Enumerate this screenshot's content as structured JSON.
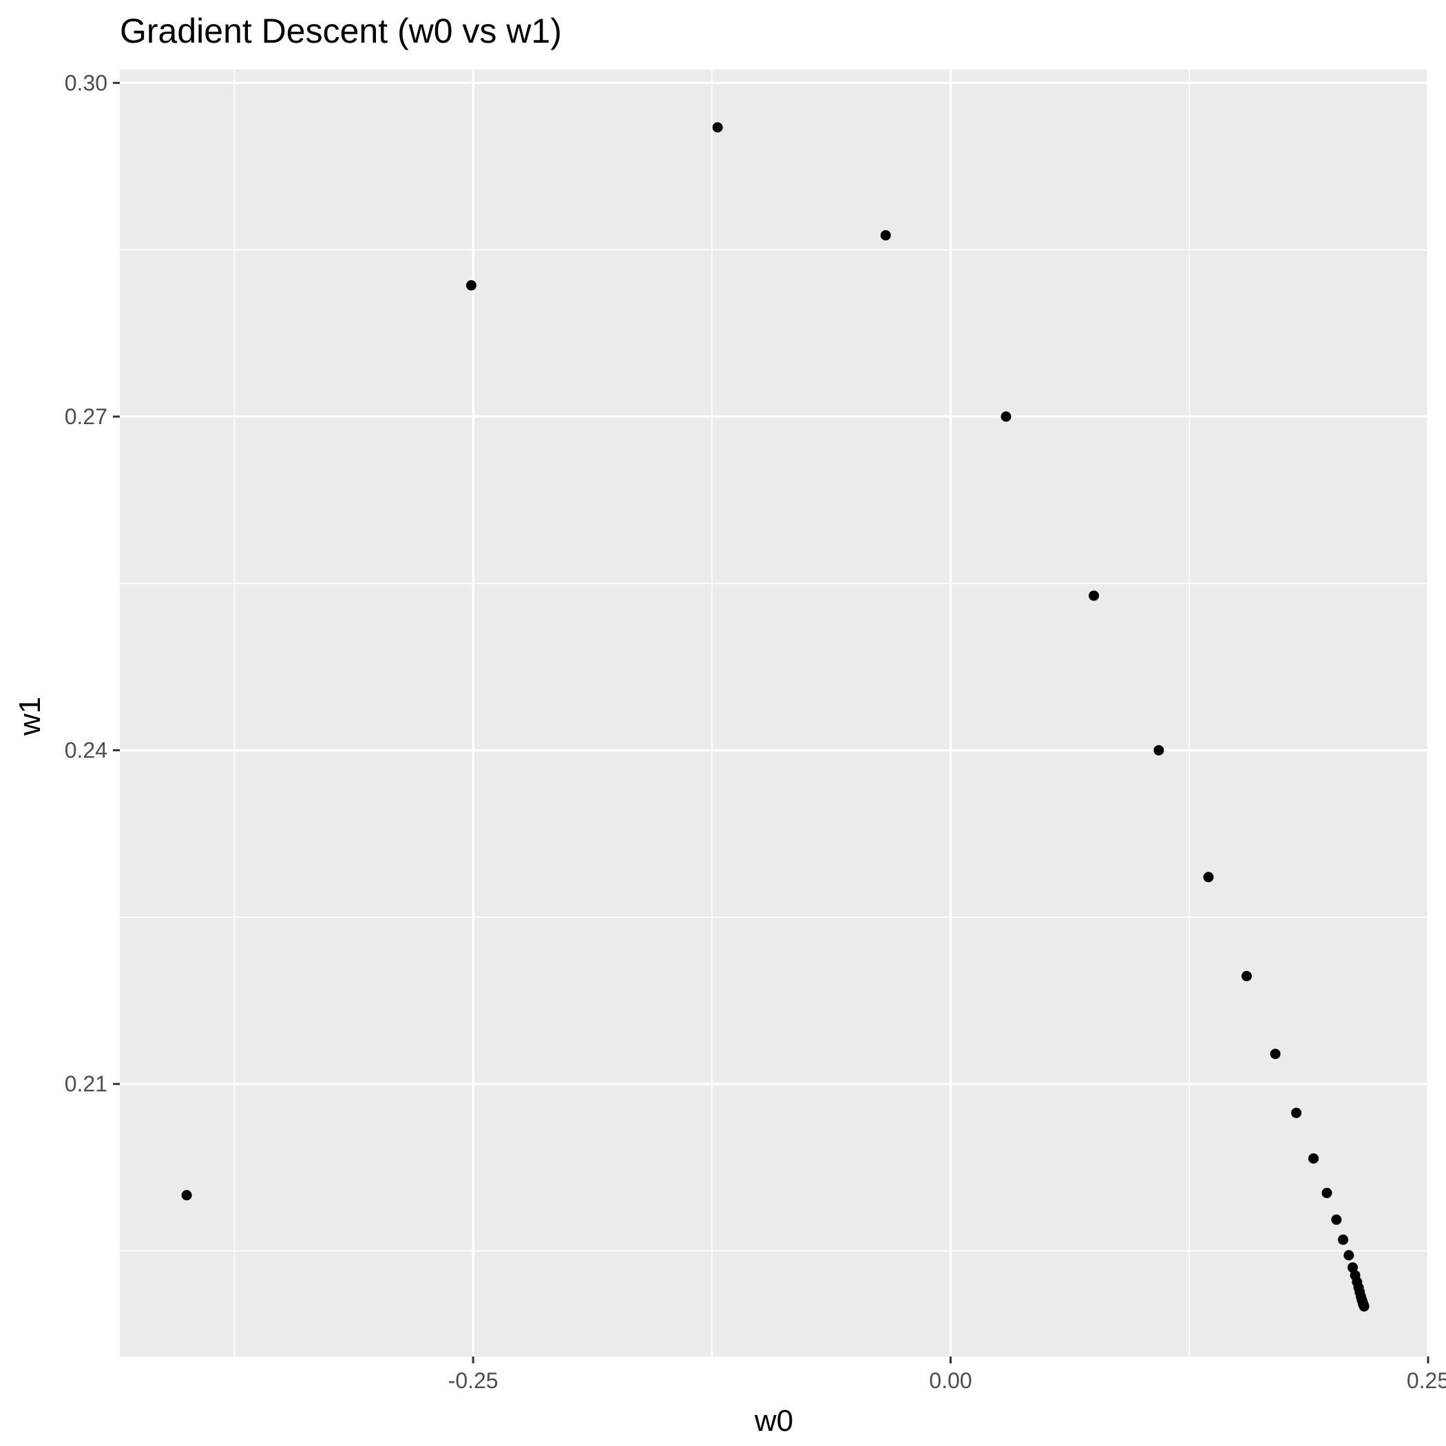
{
  "chart_data": {
    "type": "scatter",
    "title": "Gradient Descent (w0 vs w1)",
    "xlabel": "w0",
    "ylabel": "w1",
    "xlim": [
      -0.435,
      0.25
    ],
    "ylim": [
      0.1855,
      0.3012
    ],
    "x_ticks": [
      -0.25,
      0.0,
      0.25
    ],
    "x_tick_labels": [
      "-0.25",
      "0.00",
      "0.25"
    ],
    "y_ticks": [
      0.21,
      0.24,
      0.27,
      0.3
    ],
    "y_tick_labels": [
      "0.21",
      "0.24",
      "0.27",
      "0.30"
    ],
    "grid": true,
    "background_color": "#ebebeb",
    "grid_color": "#ffffff",
    "point_color": "#000000",
    "series": [
      {
        "x": [
          -0.4,
          -0.251,
          -0.122,
          -0.034,
          0.029,
          0.075,
          0.109,
          0.135,
          0.155,
          0.17,
          0.181,
          0.19,
          0.197,
          0.202,
          0.2055,
          0.2085,
          0.2105,
          0.2118,
          0.2128,
          0.2136,
          0.2142,
          0.2148,
          0.2153,
          0.2157,
          0.216,
          0.2163,
          0.2165
        ],
        "y": [
          0.2,
          0.2818,
          0.296,
          0.2863,
          0.27,
          0.2539,
          0.24,
          0.2286,
          0.2197,
          0.2127,
          0.2074,
          0.2033,
          0.2002,
          0.1978,
          0.196,
          0.1946,
          0.1935,
          0.1928,
          0.1922,
          0.1917,
          0.1913,
          0.1909,
          0.1906,
          0.1904,
          0.1902,
          0.1901,
          0.19
        ]
      }
    ]
  }
}
